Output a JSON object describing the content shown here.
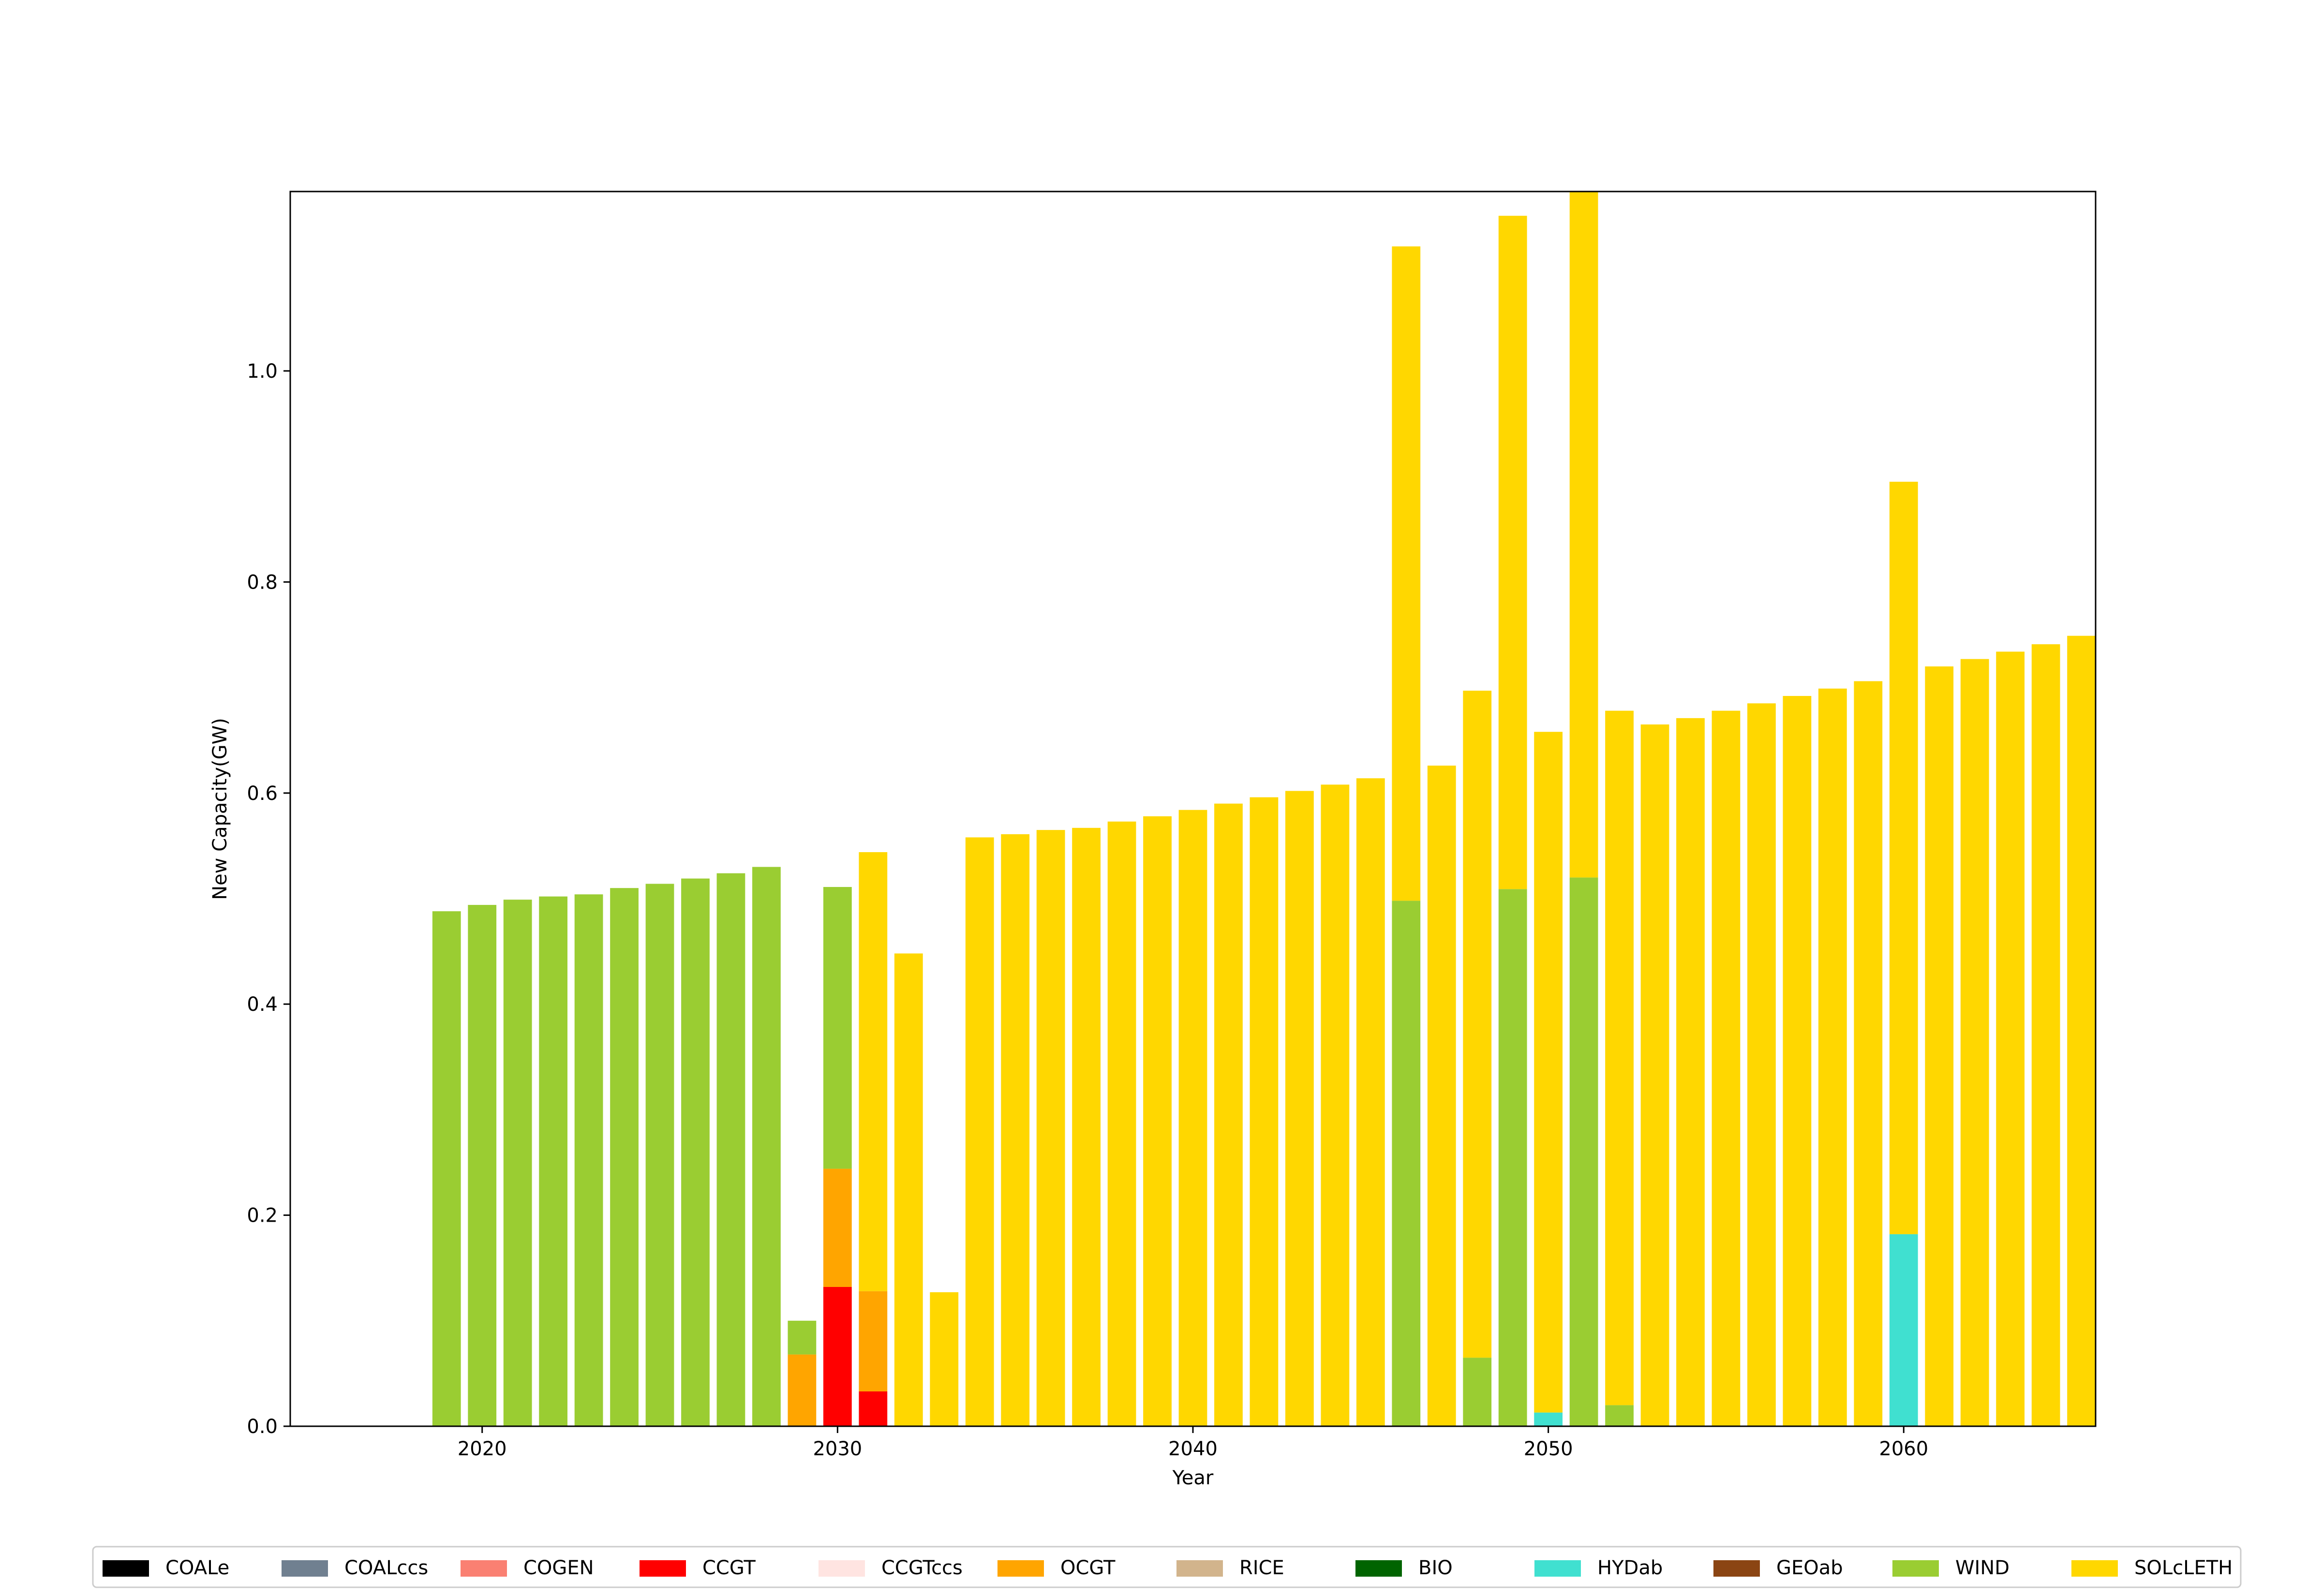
{
  "chart_data": {
    "type": "bar",
    "stacked": true,
    "title": "",
    "xlabel": "Year",
    "ylabel": "New Capacity(GW)",
    "xlim": [
      2014.6,
      2065.4
    ],
    "ylim": [
      0,
      1.17
    ],
    "x_ticks": [
      2020,
      2030,
      2040,
      2050,
      2060
    ],
    "y_ticks": [
      0.0,
      0.2,
      0.4,
      0.6,
      0.8,
      1.0
    ],
    "legend_position": "bottom",
    "x": [
      2019,
      2020,
      2021,
      2022,
      2023,
      2024,
      2025,
      2026,
      2027,
      2028,
      2029,
      2030,
      2031,
      2032,
      2033,
      2034,
      2035,
      2036,
      2037,
      2038,
      2039,
      2040,
      2041,
      2042,
      2043,
      2044,
      2045,
      2046,
      2047,
      2048,
      2049,
      2050,
      2051,
      2052,
      2053,
      2054,
      2055,
      2056,
      2057,
      2058,
      2059,
      2060,
      2061,
      2062,
      2063,
      2064,
      2065
    ],
    "series": [
      {
        "name": "COALe",
        "color": "#000000",
        "values": [
          0,
          0,
          0,
          0,
          0,
          0,
          0,
          0,
          0,
          0,
          0,
          0,
          0,
          0,
          0,
          0,
          0,
          0,
          0,
          0,
          0,
          0,
          0,
          0,
          0,
          0,
          0,
          0,
          0,
          0,
          0,
          0,
          0,
          0,
          0,
          0,
          0,
          0,
          0,
          0,
          0,
          0,
          0,
          0,
          0,
          0,
          0
        ]
      },
      {
        "name": "COALccs",
        "color": "#708090",
        "values": [
          0,
          0,
          0,
          0,
          0,
          0,
          0,
          0,
          0,
          0,
          0,
          0,
          0,
          0,
          0,
          0,
          0,
          0,
          0,
          0,
          0,
          0,
          0,
          0,
          0,
          0,
          0,
          0,
          0,
          0,
          0,
          0,
          0,
          0,
          0,
          0,
          0,
          0,
          0,
          0,
          0,
          0,
          0,
          0,
          0,
          0,
          0
        ]
      },
      {
        "name": "COGEN",
        "color": "#fa8072",
        "values": [
          0,
          0,
          0,
          0,
          0,
          0,
          0,
          0,
          0,
          0,
          0,
          0,
          0,
          0,
          0,
          0,
          0,
          0,
          0,
          0,
          0,
          0,
          0,
          0,
          0,
          0,
          0,
          0,
          0,
          0,
          0,
          0,
          0,
          0,
          0,
          0,
          0,
          0,
          0,
          0,
          0,
          0,
          0,
          0,
          0,
          0,
          0
        ]
      },
      {
        "name": "CCGT",
        "color": "#ff0000",
        "values": [
          0,
          0,
          0,
          0,
          0,
          0,
          0,
          0,
          0,
          0,
          0,
          0.132,
          0.033,
          0,
          0,
          0,
          0,
          0,
          0,
          0,
          0,
          0,
          0,
          0,
          0,
          0,
          0,
          0,
          0,
          0,
          0,
          0,
          0,
          0,
          0,
          0,
          0,
          0,
          0,
          0,
          0,
          0,
          0,
          0,
          0,
          0,
          0
        ]
      },
      {
        "name": "CCGTccs",
        "color": "#ffe4e1",
        "values": [
          0,
          0,
          0,
          0,
          0,
          0,
          0,
          0,
          0,
          0,
          0,
          0,
          0,
          0,
          0,
          0,
          0,
          0,
          0,
          0,
          0,
          0,
          0,
          0,
          0,
          0,
          0,
          0,
          0,
          0,
          0,
          0,
          0,
          0,
          0,
          0,
          0,
          0,
          0,
          0,
          0,
          0,
          0,
          0,
          0,
          0,
          0
        ]
      },
      {
        "name": "OCGT",
        "color": "#ffa500",
        "values": [
          0,
          0,
          0,
          0,
          0,
          0,
          0,
          0,
          0,
          0,
          0.068,
          0.112,
          0.095,
          0,
          0,
          0,
          0,
          0,
          0,
          0,
          0,
          0,
          0,
          0,
          0,
          0,
          0,
          0,
          0,
          0,
          0,
          0,
          0,
          0,
          0,
          0,
          0,
          0,
          0,
          0,
          0,
          0,
          0,
          0,
          0,
          0,
          0
        ]
      },
      {
        "name": "RICE",
        "color": "#d2b48c",
        "values": [
          0,
          0,
          0,
          0,
          0,
          0,
          0,
          0,
          0,
          0,
          0,
          0,
          0,
          0,
          0,
          0,
          0,
          0,
          0,
          0,
          0,
          0,
          0,
          0,
          0,
          0,
          0,
          0,
          0,
          0,
          0,
          0,
          0,
          0,
          0,
          0,
          0,
          0,
          0,
          0,
          0,
          0,
          0,
          0,
          0,
          0,
          0
        ]
      },
      {
        "name": "BIO",
        "color": "#006400",
        "values": [
          0,
          0,
          0,
          0,
          0,
          0,
          0,
          0,
          0,
          0,
          0,
          0,
          0,
          0,
          0,
          0,
          0,
          0,
          0,
          0,
          0,
          0,
          0,
          0,
          0,
          0,
          0,
          0,
          0,
          0,
          0,
          0,
          0,
          0,
          0,
          0,
          0,
          0,
          0,
          0,
          0,
          0,
          0,
          0,
          0,
          0,
          0
        ]
      },
      {
        "name": "HYDab",
        "color": "#40e0d0",
        "values": [
          0,
          0,
          0,
          0,
          0,
          0,
          0,
          0,
          0,
          0,
          0,
          0,
          0,
          0,
          0,
          0,
          0,
          0,
          0,
          0,
          0,
          0,
          0,
          0,
          0,
          0,
          0,
          0,
          0,
          0,
          0,
          0.013,
          0,
          0,
          0,
          0,
          0,
          0,
          0,
          0,
          0,
          0.182,
          0,
          0,
          0,
          0,
          0
        ]
      },
      {
        "name": "GEOab",
        "color": "#8b4513",
        "values": [
          0,
          0,
          0,
          0,
          0,
          0,
          0,
          0,
          0,
          0,
          0,
          0,
          0,
          0,
          0,
          0,
          0,
          0,
          0,
          0,
          0,
          0,
          0,
          0,
          0,
          0,
          0,
          0,
          0,
          0,
          0,
          0,
          0,
          0,
          0,
          0,
          0,
          0,
          0,
          0,
          0,
          0,
          0,
          0,
          0,
          0,
          0
        ]
      },
      {
        "name": "WIND",
        "color": "#9acd32",
        "values": [
          0.488,
          0.494,
          0.499,
          0.502,
          0.504,
          0.51,
          0.514,
          0.519,
          0.524,
          0.53,
          0.032,
          0.267,
          0,
          0,
          0,
          0,
          0,
          0,
          0,
          0,
          0,
          0,
          0,
          0,
          0,
          0,
          0,
          0.498,
          0,
          0.065,
          0.509,
          0,
          0.52,
          0.02,
          0,
          0,
          0,
          0,
          0,
          0,
          0,
          0,
          0,
          0,
          0,
          0,
          0
        ]
      },
      {
        "name": "SOLcLETH",
        "color": "#ffd700",
        "values": [
          0,
          0,
          0,
          0,
          0,
          0,
          0,
          0,
          0,
          0,
          0,
          0,
          0.416,
          0.448,
          0.127,
          0.558,
          0.561,
          0.565,
          0.567,
          0.573,
          0.578,
          0.584,
          0.59,
          0.596,
          0.602,
          0.608,
          0.614,
          0.62,
          0.626,
          0.632,
          0.638,
          0.645,
          0.651,
          0.658,
          0.665,
          0.671,
          0.678,
          0.685,
          0.692,
          0.699,
          0.706,
          0.713,
          0.72,
          0.727,
          0.734,
          0.741,
          0.749
        ]
      }
    ]
  }
}
